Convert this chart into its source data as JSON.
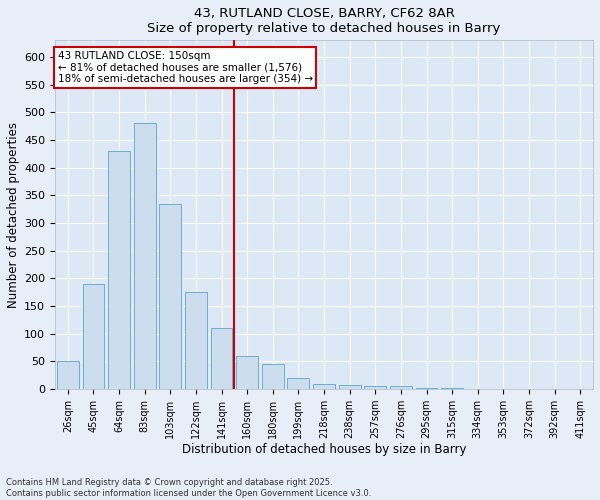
{
  "title1": "43, RUTLAND CLOSE, BARRY, CF62 8AR",
  "title2": "Size of property relative to detached houses in Barry",
  "xlabel": "Distribution of detached houses by size in Barry",
  "ylabel": "Number of detached properties",
  "categories": [
    "26sqm",
    "45sqm",
    "64sqm",
    "83sqm",
    "103sqm",
    "122sqm",
    "141sqm",
    "160sqm",
    "180sqm",
    "199sqm",
    "218sqm",
    "238sqm",
    "257sqm",
    "276sqm",
    "295sqm",
    "315sqm",
    "334sqm",
    "353sqm",
    "372sqm",
    "392sqm",
    "411sqm"
  ],
  "values": [
    50,
    190,
    430,
    480,
    335,
    175,
    110,
    60,
    45,
    20,
    10,
    8,
    5,
    5,
    3,
    2,
    1,
    1,
    0.5,
    0.5,
    0.5
  ],
  "bar_color": "#ccdded",
  "bar_edge_color": "#6baed6",
  "vline_color": "#cc0000",
  "annotation_title": "43 RUTLAND CLOSE: 150sqm",
  "annotation_line1": "← 81% of detached houses are smaller (1,576)",
  "annotation_line2": "18% of semi-detached houses are larger (354) →",
  "annotation_box_edge_color": "#cc0000",
  "ylim": [
    0,
    630
  ],
  "yticks": [
    0,
    50,
    100,
    150,
    200,
    250,
    300,
    350,
    400,
    450,
    500,
    550,
    600
  ],
  "fig_bg_color": "#e8eef8",
  "ax_bg_color": "#dce8f5",
  "footer1": "Contains HM Land Registry data © Crown copyright and database right 2025.",
  "footer2": "Contains public sector information licensed under the Open Government Licence v3.0."
}
